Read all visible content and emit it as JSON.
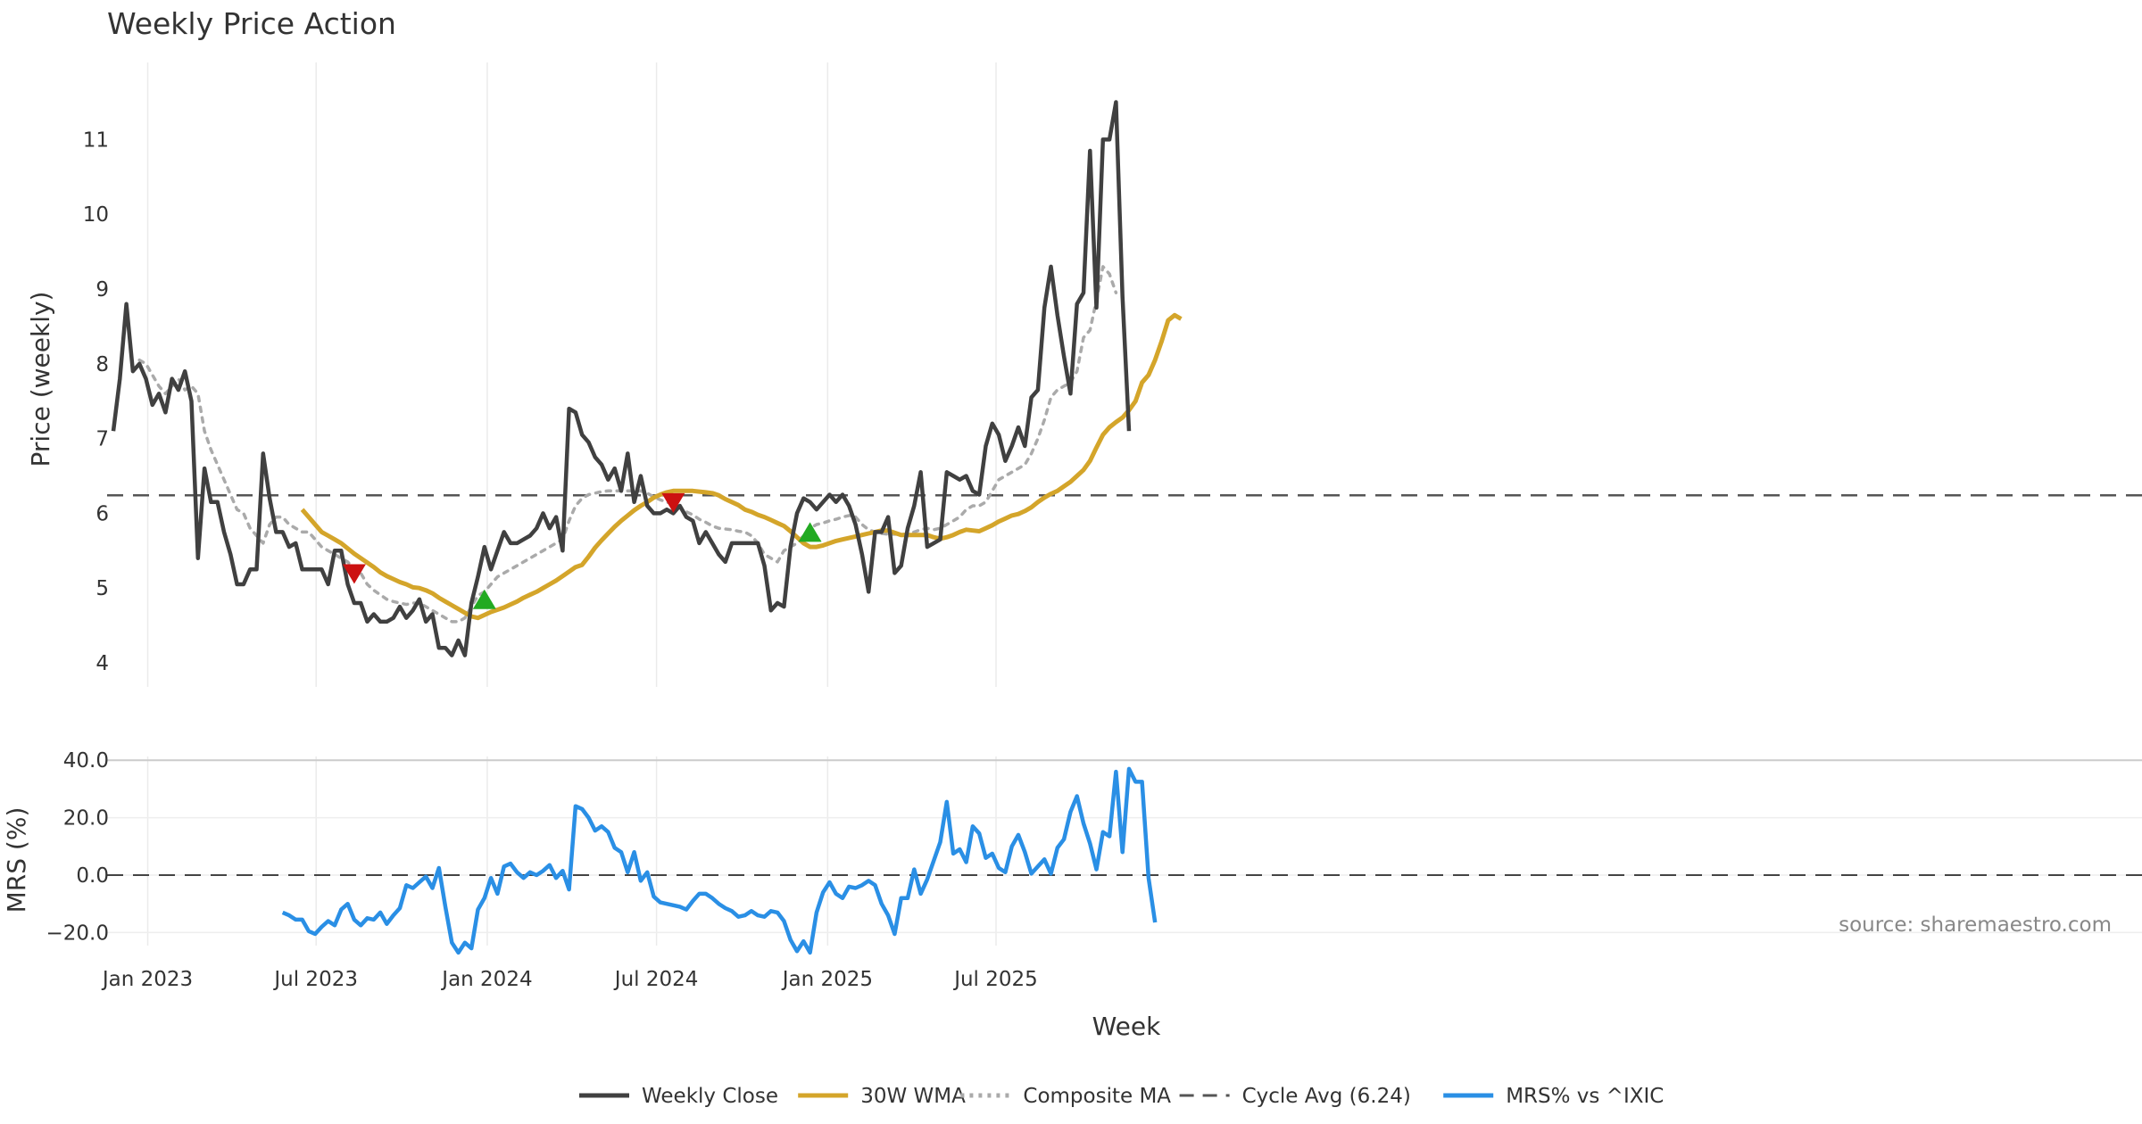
{
  "chart_data": [
    {
      "type": "line",
      "title": "Weekly Price Action",
      "ylabel": "Price (weekly)",
      "ylim": [
        3.7,
        11.9
      ],
      "yticks": [
        "4",
        "5",
        "6",
        "7",
        "8",
        "9",
        "10",
        "11"
      ],
      "grid": true,
      "x_start": "2022-11-25",
      "x_step_days": 7,
      "series": [
        {
          "name": "Weekly Close",
          "color": "#404040",
          "style": "solid",
          "values": [
            7.1,
            7.8,
            8.8,
            7.9,
            8.0,
            7.8,
            7.45,
            7.6,
            7.35,
            7.8,
            7.65,
            7.9,
            7.5,
            5.4,
            6.6,
            6.15,
            6.15,
            5.75,
            5.45,
            5.05,
            5.05,
            5.25,
            5.25,
            6.8,
            6.2,
            5.75,
            5.75,
            5.55,
            5.6,
            5.25,
            5.25,
            5.25,
            5.25,
            5.05,
            5.5,
            5.5,
            5.05,
            4.8,
            4.8,
            4.55,
            4.65,
            4.55,
            4.55,
            4.6,
            4.75,
            4.6,
            4.7,
            4.85,
            4.55,
            4.65,
            4.2,
            4.2,
            4.1,
            4.3,
            4.1,
            4.8,
            5.15,
            5.55,
            5.25,
            5.5,
            5.75,
            5.6,
            5.6,
            5.65,
            5.7,
            5.8,
            6.0,
            5.8,
            5.95,
            5.5,
            7.4,
            7.35,
            7.05,
            6.95,
            6.75,
            6.65,
            6.45,
            6.6,
            6.3,
            6.8,
            6.15,
            6.5,
            6.1,
            6.0,
            6.0,
            6.05,
            6.0,
            6.1,
            5.95,
            5.9,
            5.6,
            5.75,
            5.6,
            5.45,
            5.35,
            5.6,
            5.6,
            5.6,
            5.6,
            5.6,
            5.3,
            4.7,
            4.8,
            4.75,
            5.55,
            6.0,
            6.2,
            6.15,
            6.05,
            6.15,
            6.25,
            6.15,
            6.25,
            6.1,
            5.85,
            5.45,
            4.95,
            5.75,
            5.75,
            5.95,
            5.2,
            5.3,
            5.8,
            6.1,
            6.55,
            5.55,
            5.6,
            5.65,
            6.55,
            6.5,
            6.45,
            6.5,
            6.3,
            6.25,
            6.9,
            7.2,
            7.05,
            6.7,
            6.9,
            7.15,
            6.9,
            7.55,
            7.65,
            8.75,
            9.3,
            8.65,
            8.1,
            7.6,
            8.8,
            8.95,
            10.85,
            8.75,
            11.0,
            11.0,
            11.5,
            8.9,
            7.1
          ]
        },
        {
          "name": "30W WMA",
          "color": "#D4A52A",
          "style": "solid",
          "start_index": 29,
          "values": [
            6.05,
            5.95,
            5.85,
            5.75,
            5.7,
            5.65,
            5.6,
            5.53,
            5.46,
            5.4,
            5.34,
            5.28,
            5.21,
            5.16,
            5.12,
            5.08,
            5.05,
            5.01,
            5.0,
            4.97,
            4.93,
            4.87,
            4.82,
            4.77,
            4.72,
            4.67,
            4.62,
            4.6,
            4.64,
            4.68,
            4.71,
            4.74,
            4.78,
            4.82,
            4.87,
            4.91,
            4.95,
            5.0,
            5.05,
            5.1,
            5.16,
            5.22,
            5.28,
            5.31,
            5.42,
            5.54,
            5.64,
            5.73,
            5.82,
            5.9,
            5.97,
            6.04,
            6.1,
            6.15,
            6.21,
            6.25,
            6.28,
            6.3,
            6.3,
            6.3,
            6.3,
            6.29,
            6.28,
            6.27,
            6.24,
            6.19,
            6.15,
            6.11,
            6.05,
            6.02,
            5.98,
            5.95,
            5.91,
            5.87,
            5.83,
            5.76,
            5.68,
            5.6,
            5.55,
            5.55,
            5.57,
            5.6,
            5.63,
            5.65,
            5.67,
            5.69,
            5.71,
            5.73,
            5.75,
            5.77,
            5.77,
            5.74,
            5.71,
            5.71,
            5.71,
            5.71,
            5.71,
            5.68,
            5.66,
            5.68,
            5.71,
            5.75,
            5.78,
            5.77,
            5.76,
            5.8,
            5.84,
            5.89,
            5.93,
            5.97,
            5.99,
            6.03,
            6.08,
            6.15,
            6.21,
            6.26,
            6.3,
            6.36,
            6.42,
            6.5,
            6.58,
            6.7,
            6.88,
            7.05,
            7.15,
            7.22,
            7.28,
            7.38,
            7.5,
            7.75,
            7.85,
            8.05,
            8.3,
            8.58,
            8.65,
            8.6
          ]
        },
        {
          "name": "Composite MA",
          "color": "#AAAAAA",
          "style": "dotted",
          "start_index": 4,
          "values": [
            8.05,
            8.0,
            7.85,
            7.7,
            7.6,
            7.7,
            7.8,
            7.65,
            7.7,
            7.6,
            7.1,
            6.85,
            6.65,
            6.45,
            6.25,
            6.05,
            6.0,
            5.8,
            5.7,
            5.6,
            5.85,
            5.95,
            5.95,
            5.85,
            5.8,
            5.75,
            5.75,
            5.65,
            5.55,
            5.5,
            5.45,
            5.4,
            5.35,
            5.25,
            5.2,
            5.05,
            4.97,
            4.91,
            4.85,
            4.82,
            4.8,
            4.78,
            4.8,
            4.8,
            4.75,
            4.7,
            4.65,
            4.6,
            4.55,
            4.55,
            4.6,
            4.75,
            4.9,
            4.95,
            5.05,
            5.15,
            5.2,
            5.25,
            5.3,
            5.35,
            5.4,
            5.45,
            5.5,
            5.55,
            5.6,
            5.65,
            5.9,
            6.1,
            6.2,
            6.25,
            6.27,
            6.29,
            6.3,
            6.3,
            6.3,
            6.3,
            6.3,
            6.3,
            6.27,
            6.22,
            6.18,
            6.15,
            6.12,
            6.08,
            6.02,
            5.98,
            5.92,
            5.88,
            5.83,
            5.8,
            5.79,
            5.78,
            5.76,
            5.75,
            5.7,
            5.6,
            5.45,
            5.4,
            5.35,
            5.5,
            5.55,
            5.6,
            5.7,
            5.8,
            5.85,
            5.87,
            5.9,
            5.92,
            5.95,
            5.97,
            5.95,
            5.85,
            5.78,
            5.75,
            5.73,
            5.72,
            5.72,
            5.72,
            5.72,
            5.75,
            5.78,
            5.8,
            5.78,
            5.8,
            5.85,
            5.9,
            5.95,
            6.05,
            6.1,
            6.1,
            6.15,
            6.3,
            6.45,
            6.5,
            6.55,
            6.6,
            6.65,
            6.8,
            7.0,
            7.25,
            7.55,
            7.65,
            7.7,
            7.75,
            7.9,
            8.35,
            8.45,
            8.85,
            9.3,
            9.2,
            8.95
          ]
        },
        {
          "name": "Cycle Avg (6.24)",
          "color": "#555555",
          "style": "dashed",
          "constant": 6.24
        }
      ],
      "markers": [
        {
          "type": "sell",
          "index": 37,
          "value": 5.2,
          "color": "#CC1111"
        },
        {
          "type": "buy",
          "index": 57,
          "value": 4.85,
          "color": "#22AA22"
        },
        {
          "type": "sell",
          "index": 86,
          "value": 6.15,
          "color": "#CC1111"
        },
        {
          "type": "buy",
          "index": 107,
          "value": 5.75,
          "color": "#22AA22"
        }
      ]
    },
    {
      "type": "line",
      "xlabel": "Week",
      "ylabel": "MRS (%)",
      "ylim": [
        -28,
        40
      ],
      "yticks": [
        "−20.0",
        "0.0",
        "20.0",
        "40.0"
      ],
      "xticks": [
        "Jan 2023",
        "Jul 2023",
        "Jan 2024",
        "Jul 2024",
        "Jan 2025",
        "Jul 2025"
      ],
      "grid": true,
      "series": [
        {
          "name": "MRS% vs ^IXIC",
          "color": "#2A8FE5",
          "style": "solid",
          "start_index": 26,
          "values": [
            -13,
            -14,
            -15.5,
            -15.5,
            -19.5,
            -20.5,
            -18,
            -16,
            -17.5,
            -12,
            -10,
            -15.5,
            -17.5,
            -15,
            -15.5,
            -13,
            -17,
            -14,
            -11.5,
            -3.5,
            -4.5,
            -2.5,
            -0.5,
            -4.5,
            2.5,
            -11,
            -23.5,
            -27,
            -23.5,
            -25.5,
            -12,
            -8,
            -1,
            -6.5,
            3,
            4,
            1,
            -1,
            1,
            0,
            1.5,
            3.5,
            -1,
            1.5,
            -5,
            24,
            23,
            20,
            15.5,
            17,
            15,
            9.5,
            8,
            1,
            8,
            -2,
            1,
            -7.5,
            -9.5,
            -10,
            -10.5,
            -11,
            -12,
            -9,
            -6.5,
            -6.5,
            -8,
            -10,
            -11.5,
            -12.5,
            -14.5,
            -14,
            -12.5,
            -14,
            -14.5,
            -12.5,
            -13,
            -16,
            -22.5,
            -26.5,
            -23,
            -27,
            -13,
            -6,
            -2.5,
            -6.5,
            -8,
            -4,
            -4.5,
            -3.5,
            -2,
            -3.5,
            -10,
            -14,
            -20.5,
            -8,
            -8,
            2,
            -6.5,
            -1.5,
            5,
            11.5,
            25.5,
            7.5,
            9,
            4.5,
            17,
            14.5,
            6,
            7.5,
            2.5,
            1,
            10,
            14,
            8,
            0.5,
            3,
            5.5,
            0.5,
            9.5,
            12.5,
            22,
            27.5,
            18,
            11,
            2,
            15,
            13.5,
            36,
            8,
            37,
            32.5,
            32.5,
            -1,
            -16.5
          ]
        }
      ],
      "annotation": "source: sharemaestro.com"
    }
  ],
  "legend": [
    {
      "label": "Weekly Close",
      "color": "#404040",
      "style": "solid"
    },
    {
      "label": "30W WMA",
      "color": "#D4A52A",
      "style": "solid"
    },
    {
      "label": "Composite MA",
      "color": "#AAAAAA",
      "style": "dotted"
    },
    {
      "label": "Cycle Avg (6.24)",
      "color": "#555555",
      "style": "dashed"
    },
    {
      "label": "MRS% vs ^IXIC",
      "color": "#2A8FE5",
      "style": "solid"
    }
  ]
}
